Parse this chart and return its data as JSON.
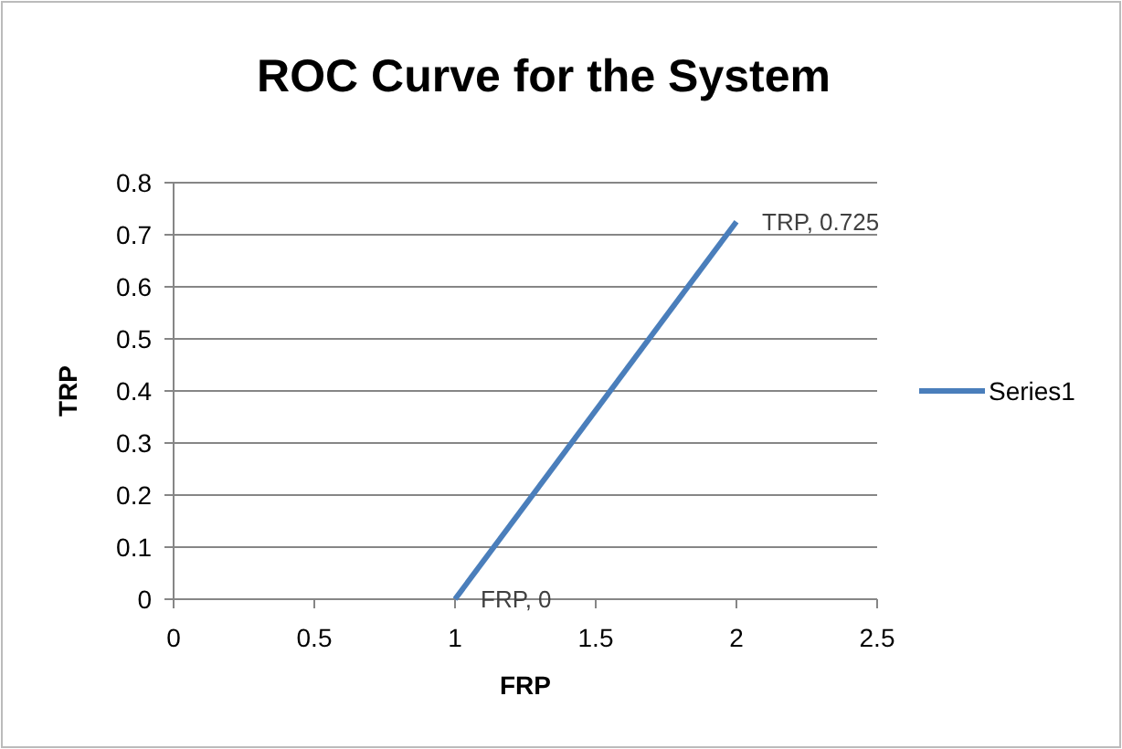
{
  "chart_data": {
    "type": "line",
    "title": "ROC Curve for the System",
    "xlabel": "FRP",
    "ylabel": "TRP",
    "series": [
      {
        "name": "Series1",
        "color": "#4a7ebb",
        "x": [
          1,
          2
        ],
        "values": [
          0,
          0.725
        ]
      }
    ],
    "xlim": [
      0,
      2.5
    ],
    "xticks": [
      0,
      0.5,
      1,
      1.5,
      2,
      2.5
    ],
    "ylim": [
      0,
      0.8
    ],
    "yticks": [
      0,
      0.1,
      0.2,
      0.3,
      0.4,
      0.5,
      0.6,
      0.7,
      0.8
    ],
    "grid": "y",
    "legend": "right",
    "marker": "none",
    "annotations": [
      {
        "text": "FRP, 0",
        "x": 1,
        "y": 0
      },
      {
        "text": "TRP, 0.725",
        "x": 2,
        "y": 0.725
      }
    ]
  }
}
